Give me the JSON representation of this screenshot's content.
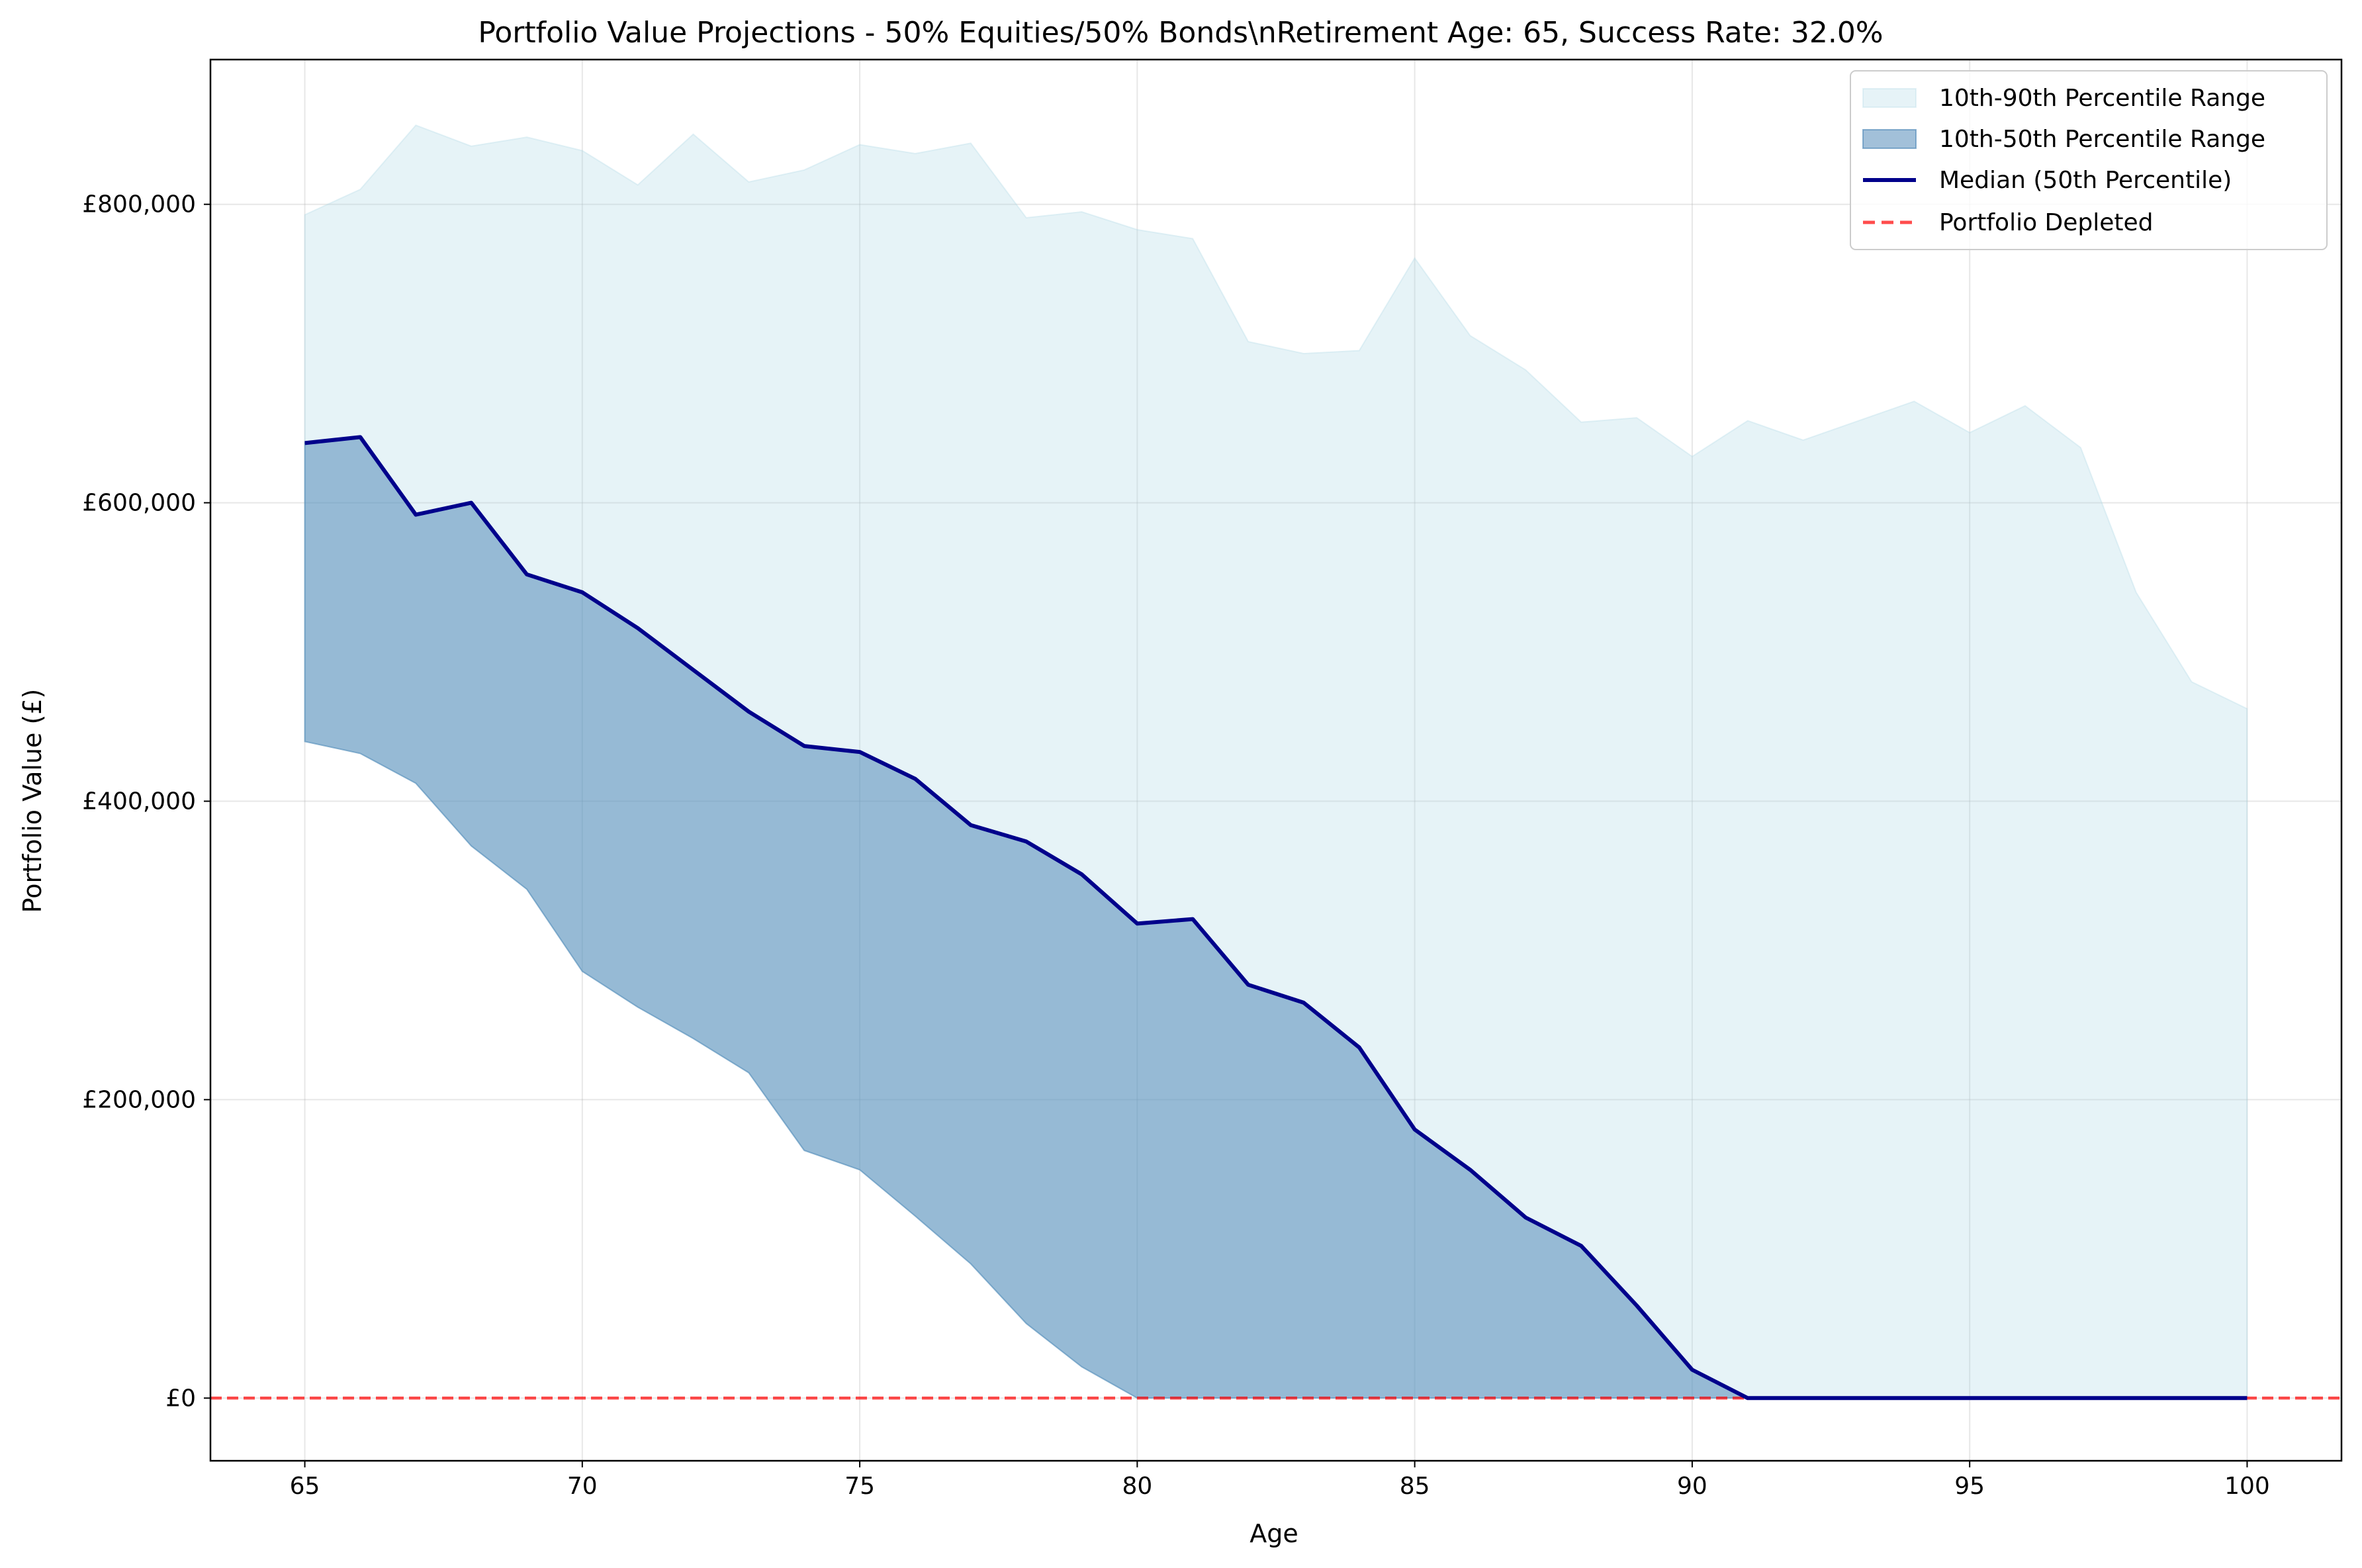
{
  "colors": {
    "band_90": "#add8e6",
    "band_50": "#4682b4",
    "median": "#00008b",
    "depleted": "#ff0000",
    "grid": "#b0b0b0"
  },
  "chart_data": {
    "type": "area",
    "title": "Portfolio Value Projections - 50% Equities/50% Bonds\\nRetirement Age: 65, Success Rate: 32.0%",
    "xlabel": "Age",
    "ylabel": "Portfolio Value (£)",
    "xlim": [
      63.3,
      101.7
    ],
    "ylim": [
      -42000,
      897000
    ],
    "xticks": [
      65,
      70,
      75,
      80,
      85,
      90,
      95,
      100
    ],
    "xtick_labels": [
      "65",
      "70",
      "75",
      "80",
      "85",
      "90",
      "95",
      "100"
    ],
    "yticks": [
      0,
      200000,
      400000,
      600000,
      800000
    ],
    "ytick_labels": [
      "£0",
      "£200,000",
      "£400,000",
      "£600,000",
      "£800,000"
    ],
    "grid": true,
    "legend_position": "top-right",
    "x": [
      65,
      66,
      67,
      68,
      69,
      70,
      71,
      72,
      73,
      74,
      75,
      76,
      77,
      78,
      79,
      80,
      81,
      82,
      83,
      84,
      85,
      86,
      87,
      88,
      89,
      90,
      91,
      92,
      93,
      94,
      95,
      96,
      97,
      98,
      99,
      100
    ],
    "series": [
      {
        "name": "10th-90th Percentile Range",
        "kind": "band",
        "lower": [
          440000,
          432000,
          412000,
          370000,
          341000,
          286000,
          262000,
          241000,
          218000,
          166000,
          153000,
          122000,
          90000,
          50000,
          21000,
          0,
          0,
          0,
          0,
          0,
          0,
          0,
          0,
          0,
          0,
          0,
          0,
          0,
          0,
          0,
          0,
          0,
          0,
          0,
          0,
          0
        ],
        "upper": [
          793000,
          810000,
          853000,
          839000,
          845000,
          836000,
          813000,
          847000,
          815000,
          823000,
          840000,
          834000,
          841000,
          791000,
          795000,
          783000,
          777000,
          708000,
          700000,
          702000,
          764000,
          712000,
          689000,
          654000,
          657000,
          631000,
          655000,
          642000,
          655000,
          668000,
          647000,
          665000,
          637000,
          540000,
          480000,
          462000
        ]
      },
      {
        "name": "10th-50th Percentile Range",
        "kind": "band",
        "lower": [
          440000,
          432000,
          412000,
          370000,
          341000,
          286000,
          262000,
          241000,
          218000,
          166000,
          153000,
          122000,
          90000,
          50000,
          21000,
          0,
          0,
          0,
          0,
          0,
          0,
          0,
          0,
          0,
          0,
          0,
          0,
          0,
          0,
          0,
          0,
          0,
          0,
          0,
          0,
          0
        ],
        "upper": [
          640000,
          644000,
          592000,
          600000,
          552000,
          540000,
          516000,
          488000,
          460000,
          437000,
          433000,
          415000,
          384000,
          373000,
          351000,
          318000,
          321000,
          277000,
          265000,
          235000,
          180000,
          153000,
          121000,
          102000,
          62000,
          19000,
          0,
          0,
          0,
          0,
          0,
          0,
          0,
          0,
          0,
          0
        ]
      },
      {
        "name": "Median (50th Percentile)",
        "kind": "line",
        "values": [
          640000,
          644000,
          592000,
          600000,
          552000,
          540000,
          516000,
          488000,
          460000,
          437000,
          433000,
          415000,
          384000,
          373000,
          351000,
          318000,
          321000,
          277000,
          265000,
          235000,
          180000,
          153000,
          121000,
          102000,
          62000,
          19000,
          0,
          0,
          0,
          0,
          0,
          0,
          0,
          0,
          0,
          0
        ]
      },
      {
        "name": "Portfolio Depleted",
        "kind": "hline",
        "y": 0
      }
    ]
  }
}
